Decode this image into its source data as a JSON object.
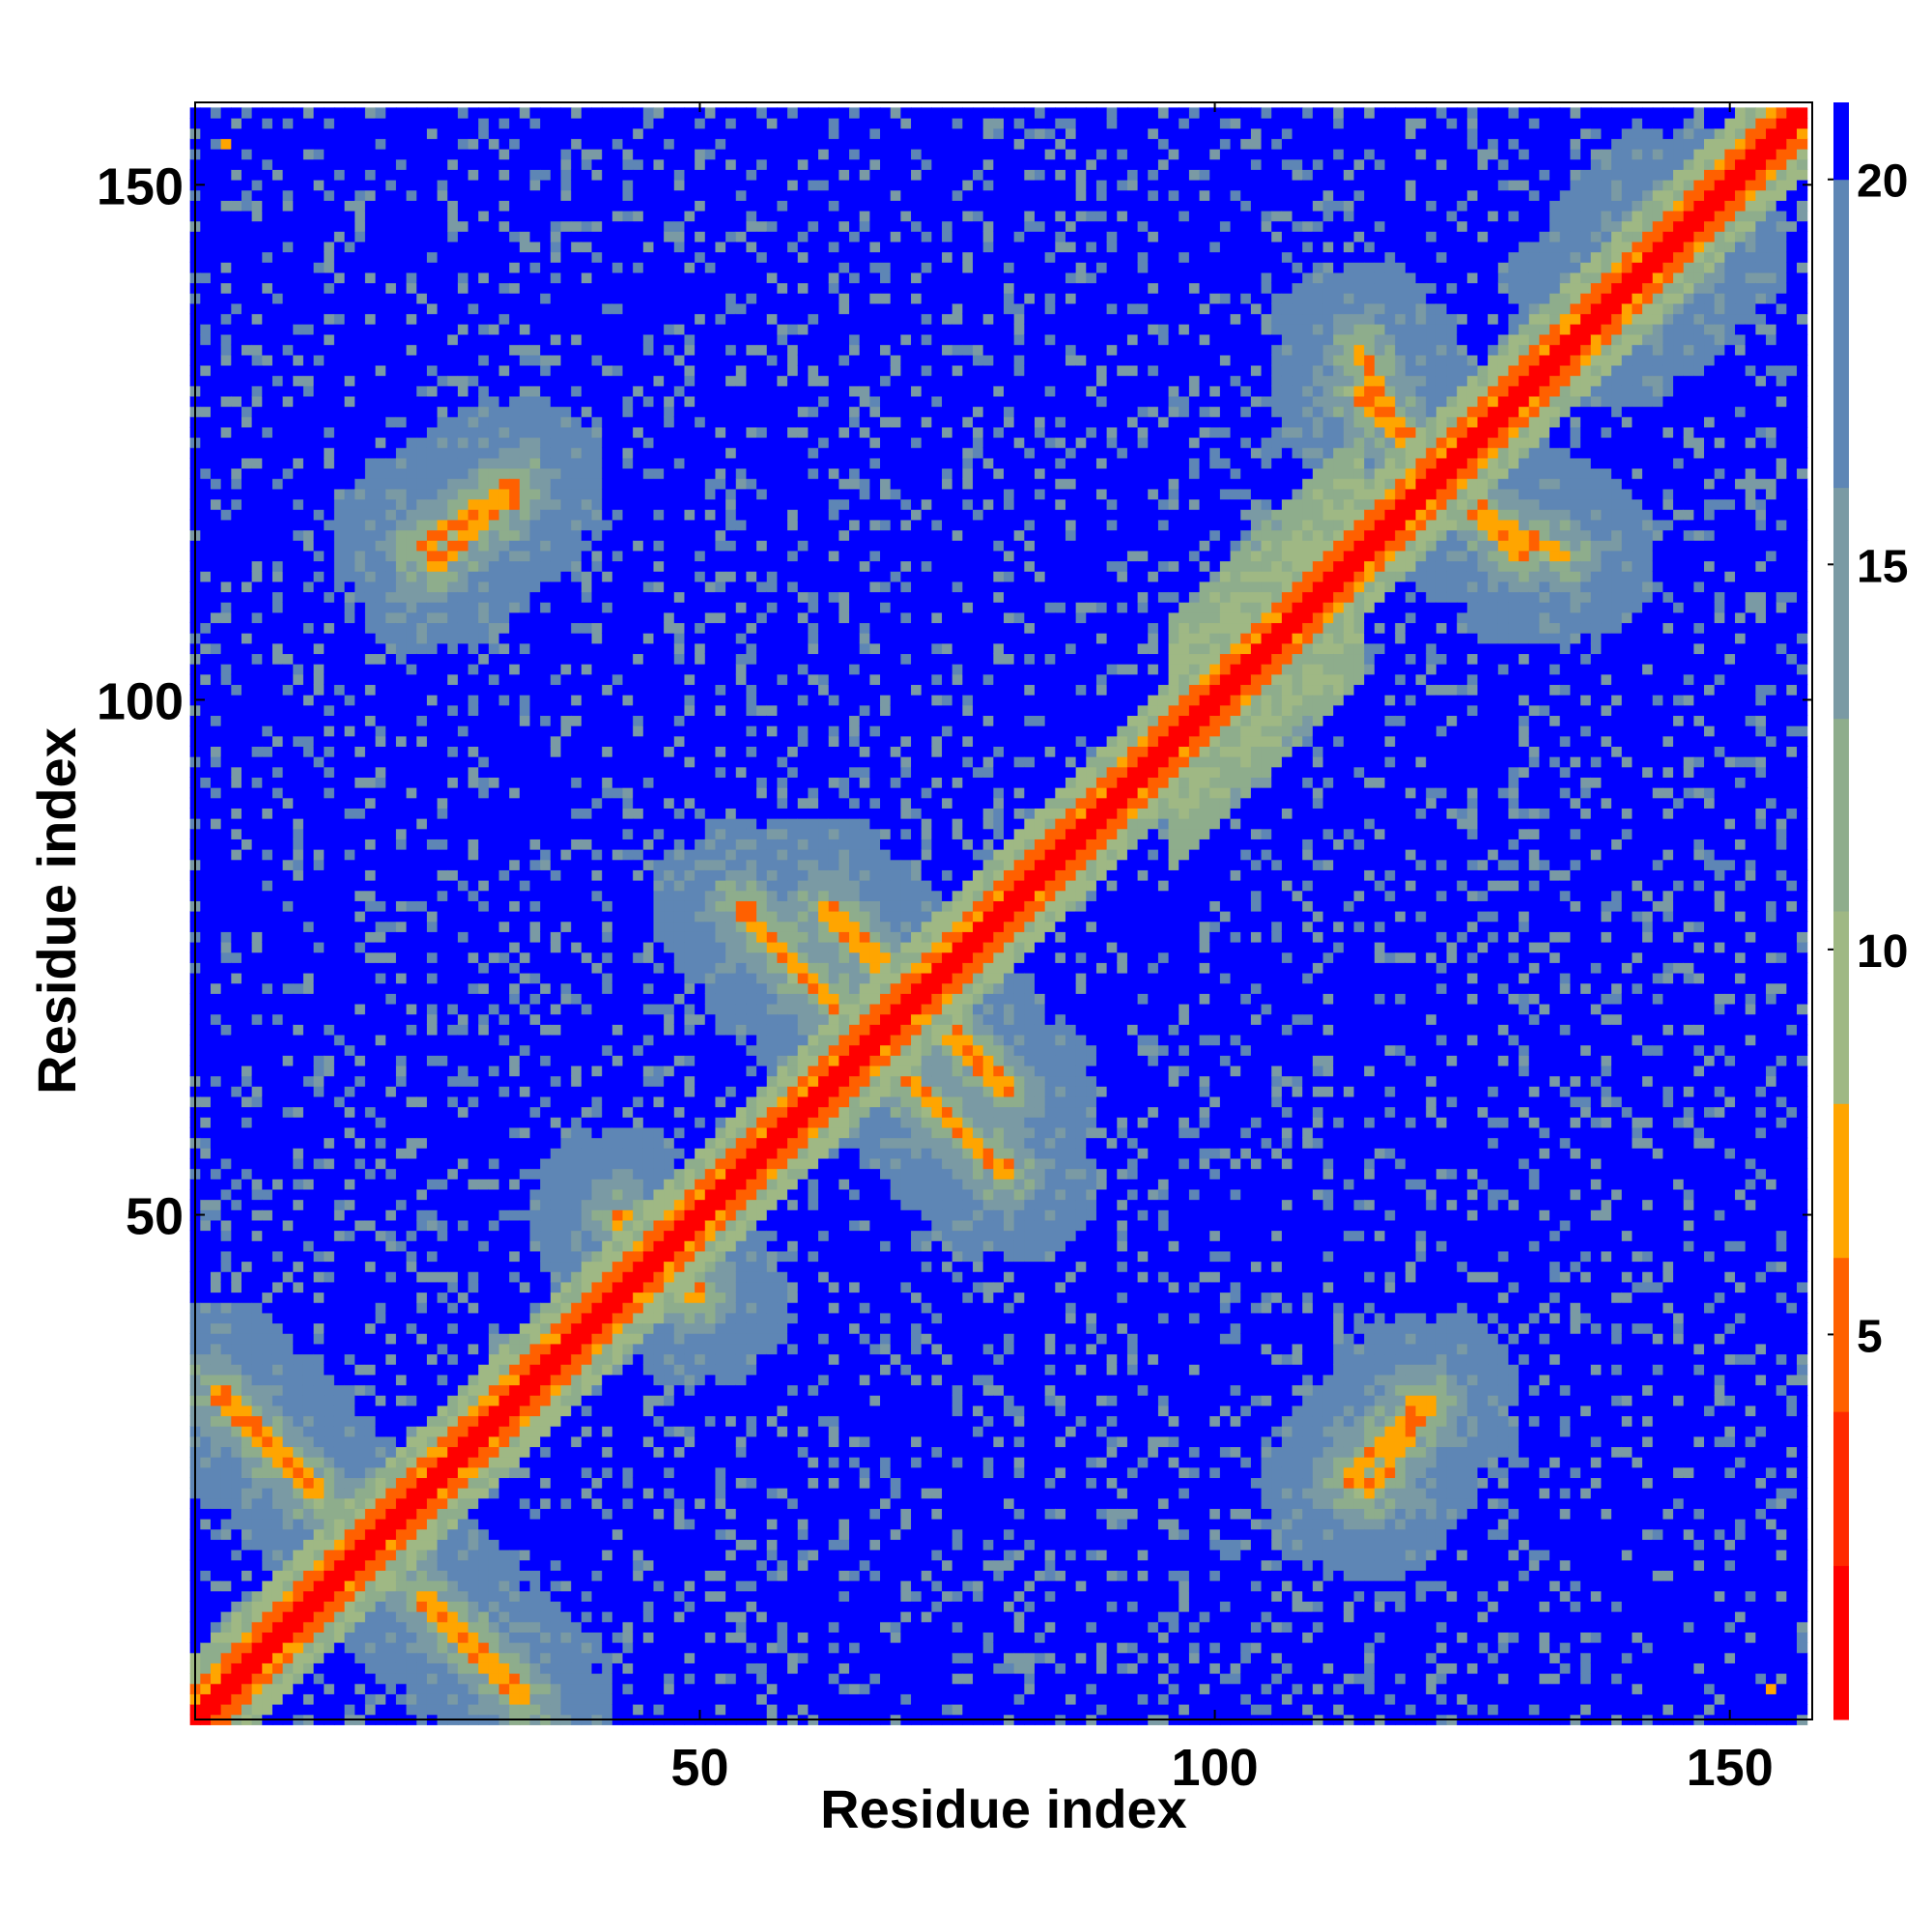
{
  "chart_data": {
    "type": "heatmap",
    "title": "",
    "xlabel": "Residue index",
    "ylabel": "Residue index",
    "n_residues": 157,
    "xlim": [
      1,
      158
    ],
    "ylim": [
      1,
      158
    ],
    "x_ticks": [
      50,
      100,
      150
    ],
    "y_ticks": [
      50,
      100,
      150
    ],
    "x_tick_labels": [
      "50",
      "100",
      "150"
    ],
    "y_tick_labels": [
      "50",
      "100",
      "150"
    ],
    "colorbar": {
      "range": [
        0,
        21
      ],
      "ticks": [
        5,
        10,
        15,
        20
      ],
      "tick_labels": [
        "5",
        "10",
        "15",
        "20"
      ],
      "bands": [
        {
          "from": 0,
          "to": 2,
          "color": "#ff0000"
        },
        {
          "from": 2,
          "to": 4,
          "color": "#ff2a00"
        },
        {
          "from": 4,
          "to": 6,
          "color": "#ff6000"
        },
        {
          "from": 6,
          "to": 8,
          "color": "#ffa500"
        },
        {
          "from": 8,
          "to": 10.5,
          "color": "#9fb884"
        },
        {
          "from": 10.5,
          "to": 13,
          "color": "#8ead8c"
        },
        {
          "from": 13,
          "to": 16,
          "color": "#7a9aa4"
        },
        {
          "from": 16,
          "to": 20,
          "color": "#5e86b5"
        },
        {
          "from": 20,
          "to": 21,
          "color": "#0000ff"
        }
      ]
    },
    "contact_features": [
      {
        "kind": "diagonal",
        "description": "self-distance band, i = j"
      },
      {
        "kind": "anti-parallel",
        "i": [
          3,
          13
        ],
        "j": [
          33,
          23
        ]
      },
      {
        "kind": "anti-parallel",
        "i": [
          42,
          48
        ],
        "j": [
          50,
          44
        ]
      },
      {
        "kind": "anti-parallel",
        "i": [
          54,
          64
        ],
        "j": [
          80,
          69
        ]
      },
      {
        "kind": "anti-parallel",
        "i": [
          69,
          80
        ],
        "j": [
          73,
          62
        ]
      },
      {
        "kind": "anti-parallel",
        "i": [
          23,
          32
        ],
        "j": [
          115,
          121
        ]
      },
      {
        "kind": "anti-parallel",
        "i": [
          114,
          124
        ],
        "j": [
          130,
          120
        ]
      },
      {
        "kind": "anti-parallel",
        "i": [
          122,
          134
        ],
        "j": [
          120,
          114
        ]
      },
      {
        "kind": "parallel",
        "i": [
          113,
          120
        ],
        "j": [
          24,
          32
        ]
      },
      {
        "kind": "parallel",
        "i": [
          137,
          144
        ],
        "j": [
          139,
          147
        ]
      },
      {
        "kind": "point",
        "i": 4,
        "j": 154
      },
      {
        "kind": "point",
        "i": 154,
        "j": 4
      }
    ]
  }
}
